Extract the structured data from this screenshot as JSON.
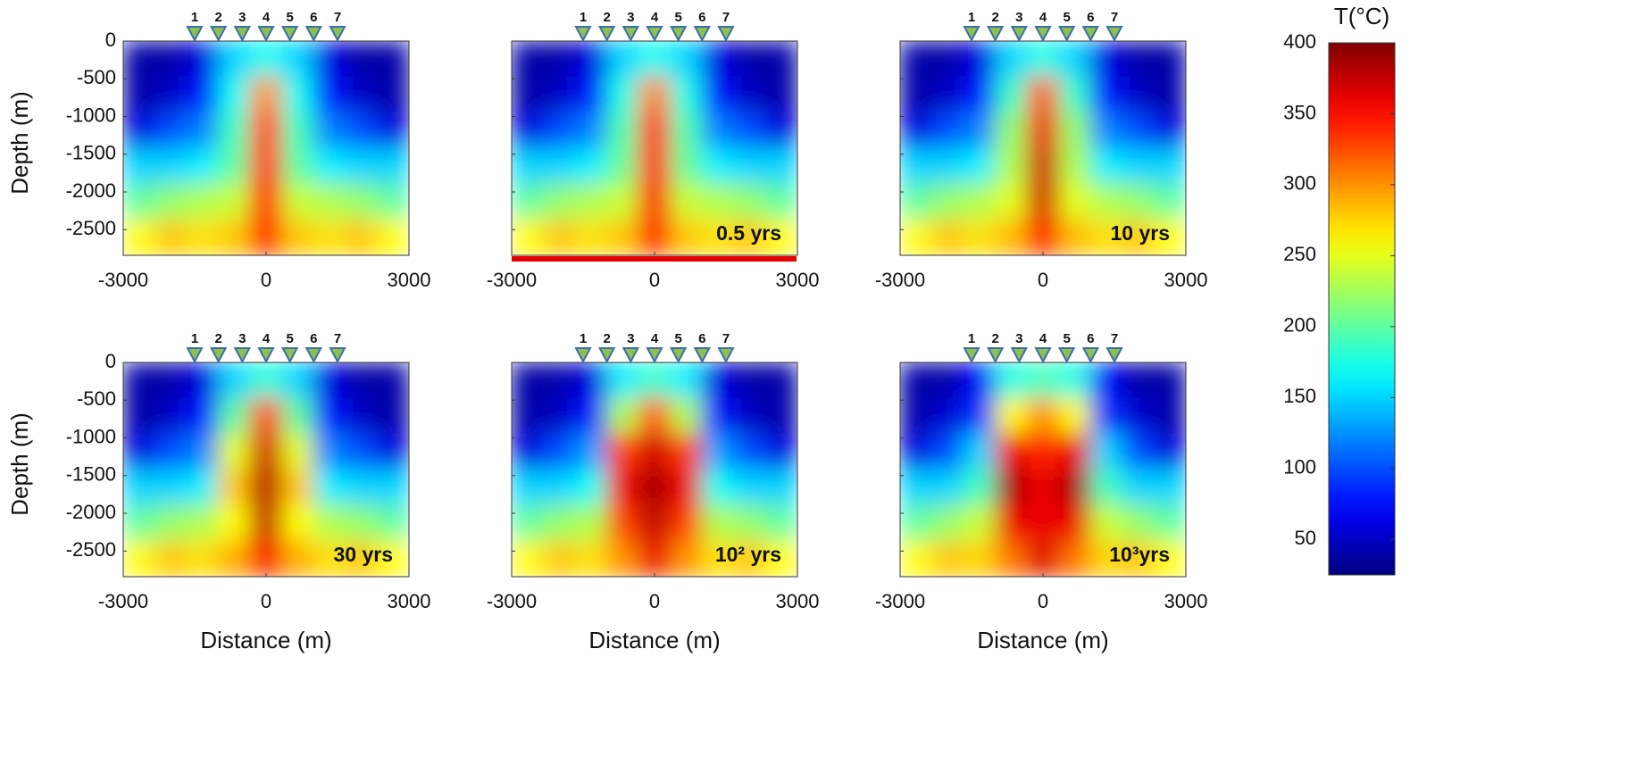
{
  "chart_data": [
    {
      "type": "heatmap",
      "ylabel": "Depth (m)",
      "xlim": [
        -3000,
        3000
      ],
      "ylim": [
        -2840,
        0
      ],
      "xticks": [
        -3000,
        0,
        3000
      ],
      "yticks": [
        0,
        -500,
        -1000,
        -1500,
        -2000,
        -2500
      ],
      "stations": {
        "labels": [
          "1",
          "2",
          "3",
          "4",
          "5",
          "6",
          "7"
        ],
        "x": [
          -1500,
          -1000,
          -500,
          0,
          500,
          1000,
          1500
        ]
      },
      "x": [
        -2667,
        -2000,
        -1333,
        -667,
        0,
        667,
        1333,
        2000,
        2667
      ],
      "y": [
        -237,
        -710,
        -1183,
        -1657,
        -2130,
        -2603
      ],
      "values": [
        [
          40,
          40,
          60,
          150,
          170,
          150,
          60,
          40,
          40
        ],
        [
          40,
          50,
          80,
          170,
          300,
          170,
          80,
          50,
          40
        ],
        [
          60,
          100,
          120,
          190,
          330,
          190,
          120,
          100,
          60
        ],
        [
          150,
          150,
          160,
          200,
          340,
          200,
          160,
          150,
          150
        ],
        [
          200,
          220,
          230,
          240,
          350,
          240,
          230,
          220,
          200
        ],
        [
          260,
          280,
          270,
          280,
          340,
          280,
          270,
          280,
          260
        ]
      ]
    },
    {
      "type": "heatmap",
      "annotation": "0.5 yrs",
      "xlim": [
        -3000,
        3000
      ],
      "ylim": [
        -2840,
        0
      ],
      "xticks": [
        -3000,
        0,
        3000
      ],
      "yticks": [
        0,
        -500,
        -1000,
        -1500,
        -2000,
        -2500
      ],
      "stations": {
        "labels": [
          "1",
          "2",
          "3",
          "4",
          "5",
          "6",
          "7"
        ],
        "x": [
          -1500,
          -1000,
          -500,
          0,
          500,
          1000,
          1500
        ]
      },
      "x": [
        -2667,
        -2000,
        -1333,
        -667,
        0,
        667,
        1333,
        2000,
        2667
      ],
      "y": [
        -237,
        -710,
        -1183,
        -1657,
        -2130,
        -2603
      ],
      "values": [
        [
          40,
          40,
          60,
          150,
          170,
          150,
          60,
          40,
          40
        ],
        [
          40,
          50,
          80,
          175,
          305,
          175,
          80,
          50,
          40
        ],
        [
          60,
          100,
          120,
          195,
          340,
          195,
          120,
          100,
          60
        ],
        [
          150,
          150,
          160,
          205,
          350,
          205,
          160,
          150,
          150
        ],
        [
          200,
          220,
          230,
          240,
          355,
          240,
          230,
          220,
          200
        ],
        [
          260,
          280,
          270,
          280,
          345,
          280,
          270,
          280,
          260
        ]
      ]
    },
    {
      "type": "heatmap",
      "annotation": "10 yrs",
      "xlim": [
        -3000,
        3000
      ],
      "ylim": [
        -2840,
        0
      ],
      "xticks": [
        -3000,
        0,
        3000
      ],
      "yticks": [
        0,
        -500,
        -1000,
        -1500,
        -2000,
        -2500
      ],
      "stations": {
        "labels": [
          "1",
          "2",
          "3",
          "4",
          "5",
          "6",
          "7"
        ],
        "x": [
          -1500,
          -1000,
          -500,
          0,
          500,
          1000,
          1500
        ]
      },
      "x": [
        -2667,
        -2000,
        -1333,
        -667,
        0,
        667,
        1333,
        2000,
        2667
      ],
      "y": [
        -237,
        -710,
        -1183,
        -1657,
        -2130,
        -2603
      ],
      "values": [
        [
          40,
          40,
          60,
          150,
          175,
          150,
          60,
          40,
          40
        ],
        [
          40,
          50,
          80,
          185,
          320,
          185,
          80,
          50,
          40
        ],
        [
          60,
          100,
          120,
          220,
          360,
          220,
          120,
          100,
          60
        ],
        [
          150,
          150,
          160,
          230,
          370,
          230,
          160,
          150,
          150
        ],
        [
          200,
          220,
          230,
          250,
          370,
          250,
          230,
          220,
          200
        ],
        [
          260,
          280,
          270,
          285,
          350,
          285,
          270,
          280,
          260
        ]
      ]
    },
    {
      "type": "heatmap",
      "ylabel": "Depth (m)",
      "xlabel": "Distance (m)",
      "annotation": "30 yrs",
      "xlim": [
        -3000,
        3000
      ],
      "ylim": [
        -2840,
        0
      ],
      "xticks": [
        -3000,
        0,
        3000
      ],
      "yticks": [
        0,
        -500,
        -1000,
        -1500,
        -2000,
        -2500
      ],
      "stations": {
        "labels": [
          "1",
          "2",
          "3",
          "4",
          "5",
          "6",
          "7"
        ],
        "x": [
          -1500,
          -1000,
          -500,
          0,
          500,
          1000,
          1500
        ]
      },
      "x": [
        -2667,
        -2000,
        -1333,
        -667,
        0,
        667,
        1333,
        2000,
        2667
      ],
      "y": [
        -237,
        -710,
        -1183,
        -1657,
        -2130,
        -2603
      ],
      "values": [
        [
          40,
          40,
          60,
          150,
          180,
          150,
          60,
          40,
          40
        ],
        [
          40,
          50,
          80,
          200,
          330,
          200,
          80,
          50,
          40
        ],
        [
          60,
          100,
          120,
          250,
          370,
          250,
          120,
          100,
          60
        ],
        [
          150,
          150,
          160,
          280,
          380,
          280,
          160,
          150,
          150
        ],
        [
          200,
          220,
          230,
          260,
          375,
          260,
          230,
          220,
          200
        ],
        [
          260,
          280,
          270,
          290,
          355,
          290,
          270,
          280,
          260
        ]
      ]
    },
    {
      "type": "heatmap",
      "xlabel": "Distance (m)",
      "annotation": "10² yrs",
      "xlim": [
        -3000,
        3000
      ],
      "ylim": [
        -2840,
        0
      ],
      "xticks": [
        -3000,
        0,
        3000
      ],
      "yticks": [
        0,
        -500,
        -1000,
        -1500,
        -2000,
        -2500
      ],
      "stations": {
        "labels": [
          "1",
          "2",
          "3",
          "4",
          "5",
          "6",
          "7"
        ],
        "x": [
          -1500,
          -1000,
          -500,
          0,
          500,
          1000,
          1500
        ]
      },
      "x": [
        -2667,
        -2000,
        -1333,
        -667,
        0,
        667,
        1333,
        2000,
        2667
      ],
      "y": [
        -237,
        -710,
        -1183,
        -1657,
        -2130,
        -2603
      ],
      "values": [
        [
          40,
          40,
          60,
          160,
          185,
          160,
          60,
          40,
          40
        ],
        [
          40,
          50,
          80,
          230,
          320,
          230,
          80,
          50,
          40
        ],
        [
          60,
          100,
          130,
          330,
          370,
          330,
          130,
          100,
          60
        ],
        [
          150,
          150,
          170,
          360,
          385,
          360,
          170,
          150,
          150
        ],
        [
          200,
          220,
          230,
          330,
          375,
          330,
          230,
          220,
          200
        ],
        [
          260,
          280,
          270,
          300,
          360,
          300,
          270,
          280,
          260
        ]
      ]
    },
    {
      "type": "heatmap",
      "xlabel": "Distance (m)",
      "annotation": "10³yrs",
      "xlim": [
        -3000,
        3000
      ],
      "ylim": [
        -2840,
        0
      ],
      "xticks": [
        -3000,
        0,
        3000
      ],
      "yticks": [
        0,
        -500,
        -1000,
        -1500,
        -2000,
        -2500
      ],
      "stations": {
        "labels": [
          "1",
          "2",
          "3",
          "4",
          "5",
          "6",
          "7"
        ],
        "x": [
          -1500,
          -1000,
          -500,
          0,
          500,
          1000,
          1500
        ]
      },
      "x": [
        -2667,
        -2000,
        -1333,
        -667,
        0,
        667,
        1333,
        2000,
        2667
      ],
      "y": [
        -237,
        -710,
        -1183,
        -1657,
        -2130,
        -2603
      ],
      "values": [
        [
          40,
          40,
          70,
          175,
          190,
          175,
          70,
          40,
          40
        ],
        [
          40,
          55,
          90,
          260,
          300,
          260,
          90,
          55,
          40
        ],
        [
          60,
          100,
          150,
          360,
          340,
          360,
          150,
          100,
          60
        ],
        [
          150,
          150,
          190,
          385,
          360,
          385,
          190,
          150,
          150
        ],
        [
          200,
          220,
          240,
          360,
          360,
          360,
          240,
          220,
          200
        ],
        [
          260,
          280,
          275,
          310,
          365,
          310,
          275,
          280,
          260
        ]
      ]
    }
  ],
  "colorbar": {
    "title": "T(°C)",
    "lim": [
      25,
      400
    ],
    "ticks": [
      50,
      100,
      150,
      200,
      250,
      300,
      350,
      400
    ]
  }
}
